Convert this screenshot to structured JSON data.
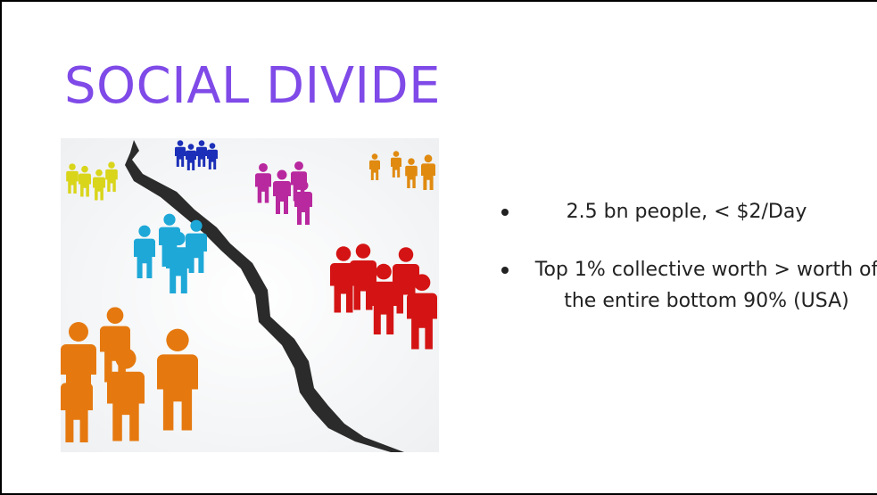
{
  "slide": {
    "title": "SOCIAL DIVIDE",
    "bullets": [
      "2.5 bn people, < $2/Day",
      "Top 1% collective worth > worth of the entire bottom 90% (USA)"
    ]
  }
}
